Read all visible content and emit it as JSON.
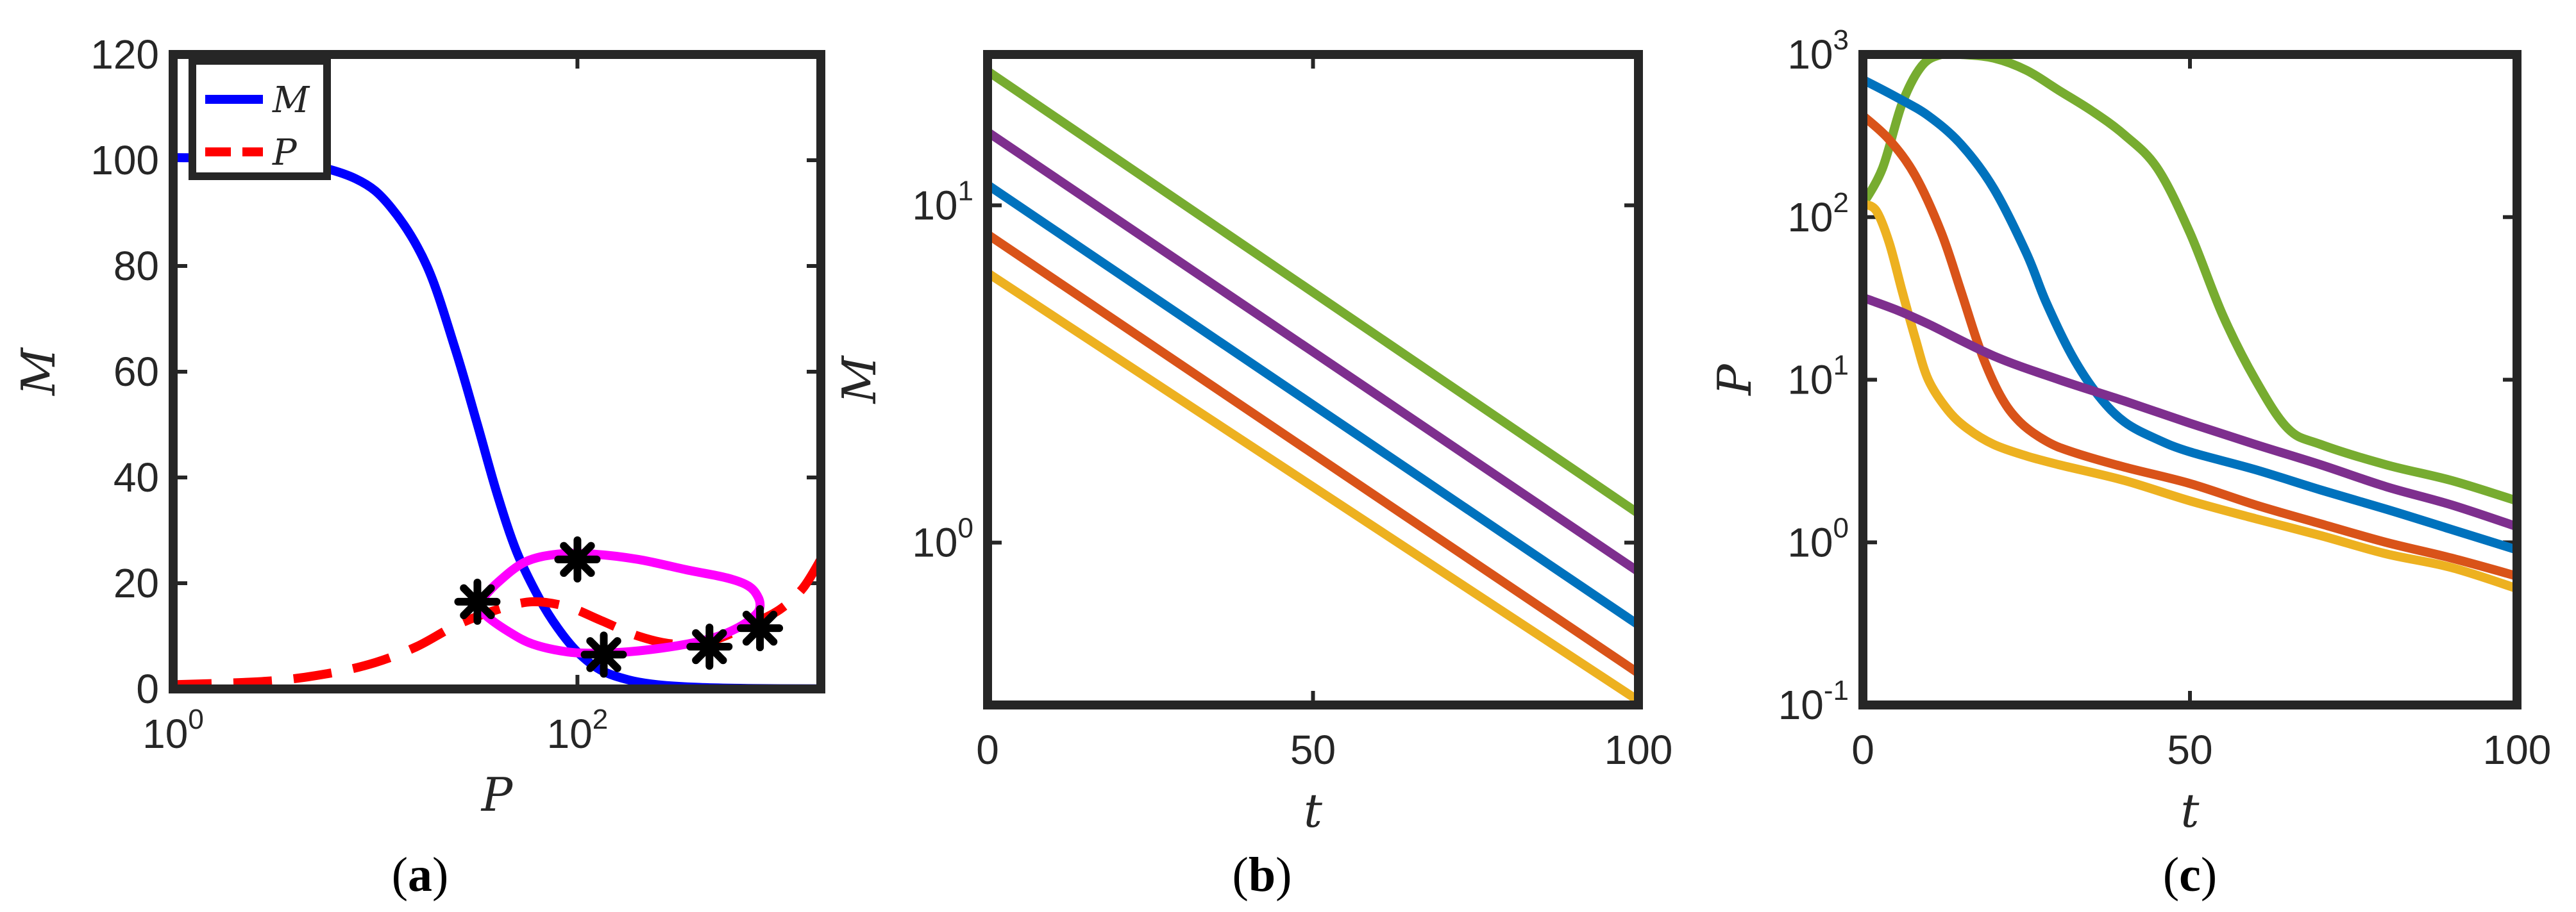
{
  "chart_data": [
    {
      "panel": "a",
      "caption": "(a)",
      "type": "line",
      "xlabel": "P",
      "ylabel": "M",
      "xscale": "log",
      "xlim": [
        1,
        1600
      ],
      "ylim": [
        0,
        120
      ],
      "xticks": [
        1,
        100
      ],
      "xtick_labels": [
        {
          "base": "10",
          "exp": "0"
        },
        {
          "base": "10",
          "exp": "2"
        }
      ],
      "yticks": [
        0,
        20,
        40,
        60,
        80,
        100,
        120
      ],
      "ytick_labels": [
        "0",
        "20",
        "40",
        "60",
        "80",
        "100",
        "120"
      ],
      "legend": {
        "position": "top-left",
        "entries": [
          "M",
          "P"
        ]
      },
      "series": [
        {
          "name": "M",
          "color": "#0000ff",
          "style": "solid",
          "x": [
            1,
            2,
            4,
            8,
            12,
            18,
            25,
            32,
            40,
            50,
            65,
            80,
            100,
            130,
            180,
            250,
            400,
            700,
            1600
          ],
          "y": [
            100.5,
            100.3,
            99.7,
            96.5,
            91,
            80,
            64,
            50,
            37,
            26,
            17,
            11.5,
            7,
            3.6,
            1.7,
            0.8,
            0.3,
            0.1,
            0.02
          ]
        },
        {
          "name": "P",
          "color": "#ff0000",
          "style": "dashed",
          "x": [
            1,
            3,
            6,
            10,
            16,
            25,
            40,
            60,
            90,
            130,
            200,
            300,
            450,
            700,
            1000,
            1300,
            1600
          ],
          "y": [
            0.8,
            1.5,
            3,
            5,
            8,
            12,
            15,
            16.5,
            15.5,
            13,
            10,
            8.5,
            9,
            12,
            15,
            19,
            24.5
          ]
        },
        {
          "color": "#ff00ff",
          "style": "solid",
          "x": [
            32,
            40,
            55,
            80,
            120,
            200,
            350,
            550,
            700,
            780,
            800,
            760,
            650,
            500,
            350,
            200,
            130,
            90,
            60,
            45,
            35,
            32
          ],
          "y": [
            16,
            20,
            24,
            25.5,
            25.5,
            24.5,
            22.5,
            21,
            19.5,
            17.5,
            15.5,
            14,
            12,
            10,
            8.5,
            7.2,
            6.8,
            7,
            8.5,
            11,
            14,
            16
          ]
        },
        {
          "color": "#000000",
          "style": "markers",
          "marker": "asterisk",
          "x": [
            32,
            100,
            135,
            450,
            800
          ],
          "y": [
            16.5,
            24.5,
            6.5,
            8,
            11.5
          ]
        }
      ]
    },
    {
      "panel": "b",
      "caption": "(b)",
      "type": "line",
      "xlabel": "t",
      "ylabel": "M",
      "yscale": "log",
      "xlim": [
        0,
        100
      ],
      "ylim": [
        0.33,
        28
      ],
      "xticks": [
        0,
        50,
        100
      ],
      "xtick_labels": [
        "0",
        "50",
        "100"
      ],
      "yticks": [
        1,
        10
      ],
      "ytick_labels": [
        {
          "base": "10",
          "exp": "0"
        },
        {
          "base": "10",
          "exp": "1"
        }
      ],
      "series": [
        {
          "color": "#77ac30",
          "x": [
            0,
            100
          ],
          "y": [
            25,
            1.22
          ]
        },
        {
          "color": "#7e2f8e",
          "x": [
            0,
            100
          ],
          "y": [
            16.5,
            0.82
          ]
        },
        {
          "color": "#0072bd",
          "x": [
            0,
            100
          ],
          "y": [
            11.5,
            0.57
          ]
        },
        {
          "color": "#d95319",
          "x": [
            0,
            100
          ],
          "y": [
            8.2,
            0.41
          ]
        },
        {
          "color": "#edb120",
          "x": [
            0,
            100
          ],
          "y": [
            6.3,
            0.34
          ]
        }
      ]
    },
    {
      "panel": "c",
      "caption": "(c)",
      "type": "line",
      "xlabel": "t",
      "ylabel": "P",
      "yscale": "log",
      "xlim": [
        0,
        100
      ],
      "ylim": [
        0.1,
        1000
      ],
      "xticks": [
        0,
        50,
        100
      ],
      "xtick_labels": [
        "0",
        "50",
        "100"
      ],
      "yticks": [
        0.1,
        1,
        10,
        100,
        1000
      ],
      "ytick_labels": [
        {
          "base": "10",
          "exp": "-1"
        },
        {
          "base": "10",
          "exp": "0"
        },
        {
          "base": "10",
          "exp": "1"
        },
        {
          "base": "10",
          "exp": "2"
        },
        {
          "base": "10",
          "exp": "3"
        }
      ],
      "series": [
        {
          "color": "#77ac30",
          "x": [
            0,
            3,
            6,
            9,
            12,
            15,
            20,
            25,
            30,
            35,
            40,
            45,
            50,
            55,
            60,
            65,
            70,
            80,
            90,
            100
          ],
          "y": [
            120,
            200,
            500,
            850,
            1000,
            1000,
            950,
            800,
            600,
            450,
            320,
            200,
            80,
            25,
            10,
            5,
            4,
            3,
            2.4,
            1.8
          ]
        },
        {
          "color": "#0072bd",
          "x": [
            0,
            5,
            10,
            15,
            20,
            25,
            28,
            32,
            36,
            40,
            45,
            50,
            60,
            70,
            80,
            90,
            100
          ],
          "y": [
            700,
            550,
            420,
            280,
            150,
            60,
            30,
            14,
            8,
            5.5,
            4.3,
            3.6,
            2.8,
            2.1,
            1.6,
            1.2,
            0.9
          ]
        },
        {
          "color": "#d95319",
          "x": [
            0,
            4,
            8,
            12,
            15,
            18,
            21,
            24,
            28,
            32,
            40,
            50,
            60,
            70,
            80,
            90,
            100
          ],
          "y": [
            420,
            300,
            180,
            80,
            35,
            15,
            8,
            5.5,
            4.2,
            3.6,
            2.9,
            2.3,
            1.7,
            1.3,
            1,
            0.8,
            0.62
          ]
        },
        {
          "color": "#edb120",
          "x": [
            0,
            2,
            4,
            6,
            8,
            10,
            13,
            16,
            20,
            25,
            30,
            40,
            50,
            60,
            70,
            80,
            90,
            100
          ],
          "y": [
            120,
            110,
            70,
            35,
            18,
            10,
            6.5,
            5,
            4,
            3.4,
            3,
            2.4,
            1.8,
            1.4,
            1.1,
            0.85,
            0.7,
            0.52
          ]
        },
        {
          "color": "#7e2f8e",
          "x": [
            0,
            5,
            10,
            20,
            30,
            40,
            50,
            60,
            70,
            80,
            90,
            100
          ],
          "y": [
            32,
            27,
            22,
            14,
            10,
            7.4,
            5.4,
            4,
            3,
            2.2,
            1.7,
            1.25
          ]
        }
      ]
    }
  ]
}
